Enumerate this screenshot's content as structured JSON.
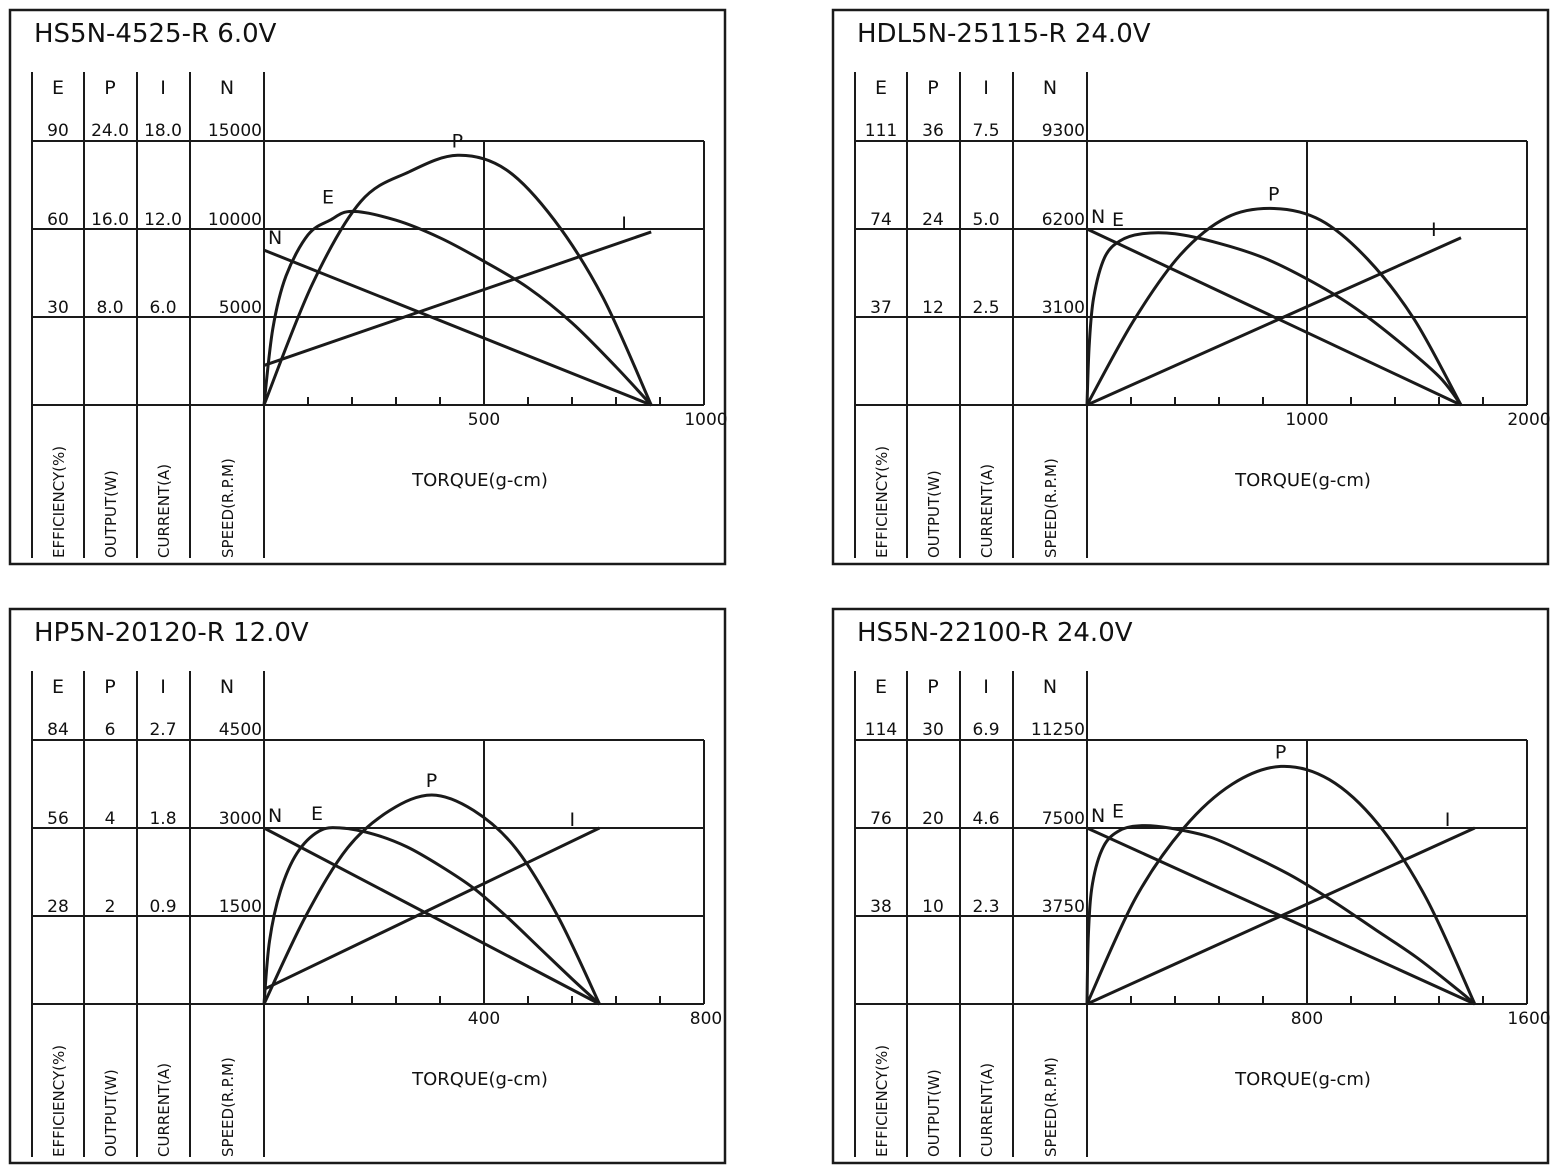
{
  "chart_data": [
    {
      "type": "line",
      "title": "HS5N-4525-R   6.0V",
      "column_headers": [
        "E",
        "P",
        "I",
        "N"
      ],
      "column_ticks": [
        [
          "90",
          "60",
          "30"
        ],
        [
          "24.0",
          "16.0",
          "8.0"
        ],
        [
          "18.0",
          "12.0",
          "6.0"
        ],
        [
          "15000",
          "10000",
          "5000"
        ]
      ],
      "column_labels": [
        "EFFICIENCY(%)",
        "OUTPUT(W)",
        "CURRENT(A)",
        "SPEED(R.P.M)"
      ],
      "xlabel": "TORQUE(g-cm)",
      "xlim": [
        0,
        1000
      ],
      "xticks": [
        "500",
        "1000"
      ],
      "minor_tick_step": 100,
      "y_scales": {
        "E": [
          0,
          90
        ],
        "P": [
          0,
          24
        ],
        "I": [
          0,
          18
        ],
        "N": [
          0,
          15000
        ]
      },
      "series": [
        {
          "name": "N",
          "axis": "N",
          "x": [
            0,
            880
          ],
          "values": [
            8800,
            0
          ]
        },
        {
          "name": "I",
          "axis": "I",
          "x": [
            0,
            880
          ],
          "values": [
            2.7,
            11.8
          ]
        },
        {
          "name": "P",
          "axis": "P",
          "x": [
            0,
            110,
            220,
            330,
            440,
            550,
            660,
            770,
            880
          ],
          "values": [
            0,
            11.0,
            18.5,
            21.2,
            22.7,
            21.4,
            16.8,
            9.8,
            0
          ]
        },
        {
          "name": "E",
          "axis": "E",
          "x": [
            0,
            20,
            50,
            100,
            150,
            200,
            300,
            400,
            500,
            600,
            700,
            800,
            880
          ],
          "values": [
            0,
            26,
            44,
            58,
            63,
            66,
            63,
            57,
            49,
            40,
            28,
            13,
            0
          ]
        }
      ],
      "curve_labels": [
        "N",
        "E",
        "P",
        "I"
      ]
    },
    {
      "type": "line",
      "title": "HDL5N-25115-R   24.0V",
      "column_headers": [
        "E",
        "P",
        "I",
        "N"
      ],
      "column_ticks": [
        [
          "111",
          "74",
          "37"
        ],
        [
          "36",
          "24",
          "12"
        ],
        [
          "7.5",
          "5.0",
          "2.5"
        ],
        [
          "9300",
          "6200",
          "3100"
        ]
      ],
      "column_labels": [
        "EFFICIENCY(%)",
        "OUTPUT(W)",
        "CURRENT(A)",
        "SPEED(R.P.M)"
      ],
      "xlabel": "TORQUE(g-cm)",
      "xlim": [
        0,
        2000
      ],
      "xticks": [
        "1000",
        "2000"
      ],
      "minor_tick_step": 200,
      "y_scales": {
        "E": [
          0,
          111
        ],
        "P": [
          0,
          36
        ],
        "I": [
          0,
          7.5
        ],
        "N": [
          0,
          9300
        ]
      },
      "series": [
        {
          "name": "N",
          "axis": "N",
          "x": [
            0,
            1700
          ],
          "values": [
            6200,
            0
          ]
        },
        {
          "name": "I",
          "axis": "I",
          "x": [
            0,
            1700
          ],
          "values": [
            0,
            4.75
          ]
        },
        {
          "name": "P",
          "axis": "P",
          "x": [
            0,
            212,
            425,
            637,
            850,
            1062,
            1275,
            1487,
            1700
          ],
          "values": [
            0,
            11.5,
            20.5,
            25.6,
            26.8,
            25.2,
            19.9,
            11.7,
            0
          ]
        },
        {
          "name": "E",
          "axis": "E",
          "x": [
            0,
            10,
            30,
            80,
            150,
            250,
            400,
            600,
            800,
            1000,
            1200,
            1400,
            1600,
            1700
          ],
          "values": [
            0,
            25,
            45,
            62,
            69,
            72,
            72,
            68,
            62,
            53,
            42,
            28,
            12,
            0
          ]
        }
      ],
      "curve_labels": [
        "N",
        "E",
        "P",
        "I"
      ]
    },
    {
      "type": "line",
      "title": "HP5N-20120-R   12.0V",
      "column_headers": [
        "E",
        "P",
        "I",
        "N"
      ],
      "column_ticks": [
        [
          "84",
          "56",
          "28"
        ],
        [
          "6",
          "4",
          "2"
        ],
        [
          "2.7",
          "1.8",
          "0.9"
        ],
        [
          "4500",
          "3000",
          "1500"
        ]
      ],
      "column_labels": [
        "EFFICIENCY(%)",
        "OUTPUT(W)",
        "CURRENT(A)",
        "SPEED(R.P.M)"
      ],
      "xlabel": "TORQUE(g-cm)",
      "xlim": [
        0,
        800
      ],
      "xticks": [
        "400",
        "800"
      ],
      "minor_tick_step": 80,
      "y_scales": {
        "E": [
          0,
          84
        ],
        "P": [
          0,
          6
        ],
        "I": [
          0,
          2.7
        ],
        "N": [
          0,
          4500
        ]
      },
      "series": [
        {
          "name": "N",
          "axis": "N",
          "x": [
            0,
            610
          ],
          "values": [
            3000,
            0
          ]
        },
        {
          "name": "I",
          "axis": "I",
          "x": [
            0,
            610
          ],
          "values": [
            0.15,
            1.8
          ]
        },
        {
          "name": "P",
          "axis": "P",
          "x": [
            0,
            76,
            152,
            229,
            305,
            381,
            457,
            534,
            610
          ],
          "values": [
            0,
            2.0,
            3.55,
            4.4,
            4.75,
            4.4,
            3.55,
            2.0,
            0
          ]
        },
        {
          "name": "E",
          "axis": "E",
          "x": [
            0,
            10,
            30,
            60,
            100,
            140,
            200,
            260,
            320,
            380,
            440,
            500,
            560,
            610
          ],
          "values": [
            0,
            20,
            36,
            48,
            55,
            56,
            54,
            50,
            44,
            37,
            28,
            18,
            8,
            0
          ]
        }
      ],
      "curve_labels": [
        "N",
        "E",
        "P",
        "I"
      ]
    },
    {
      "type": "line",
      "title": "HS5N-22100-R   24.0V",
      "column_headers": [
        "E",
        "P",
        "I",
        "N"
      ],
      "column_ticks": [
        [
          "114",
          "76",
          "38"
        ],
        [
          "30",
          "20",
          "10"
        ],
        [
          "6.9",
          "4.6",
          "2.3"
        ],
        [
          "11250",
          "7500",
          "3750"
        ]
      ],
      "column_labels": [
        "EFFICIENCY(%)",
        "OUTPUT(W)",
        "CURRENT(A)",
        "SPEED(R.P.M)"
      ],
      "xlabel": "TORQUE(g-cm)",
      "xlim": [
        0,
        1600
      ],
      "xticks": [
        "800",
        "1600"
      ],
      "minor_tick_step": 160,
      "y_scales": {
        "E": [
          0,
          114
        ],
        "P": [
          0,
          30
        ],
        "I": [
          0,
          6.9
        ],
        "N": [
          0,
          11250
        ]
      },
      "series": [
        {
          "name": "N",
          "axis": "N",
          "x": [
            0,
            1410
          ],
          "values": [
            7500,
            0
          ]
        },
        {
          "name": "I",
          "axis": "I",
          "x": [
            0,
            1410
          ],
          "values": [
            0,
            4.6
          ]
        },
        {
          "name": "P",
          "axis": "P",
          "x": [
            0,
            176,
            352,
            529,
            705,
            881,
            1057,
            1234,
            1410
          ],
          "values": [
            0,
            12.0,
            20.0,
            25.0,
            27.0,
            25.5,
            20.5,
            12.0,
            0
          ]
        },
        {
          "name": "E",
          "axis": "E",
          "x": [
            0,
            5,
            20,
            60,
            120,
            200,
            300,
            450,
            600,
            750,
            900,
            1050,
            1200,
            1350,
            1410
          ],
          "values": [
            0,
            30,
            52,
            68,
            75,
            77,
            76,
            72,
            64,
            55,
            44,
            32,
            20,
            6,
            0
          ]
        }
      ],
      "curve_labels": [
        "N",
        "E",
        "P",
        "I"
      ]
    }
  ]
}
